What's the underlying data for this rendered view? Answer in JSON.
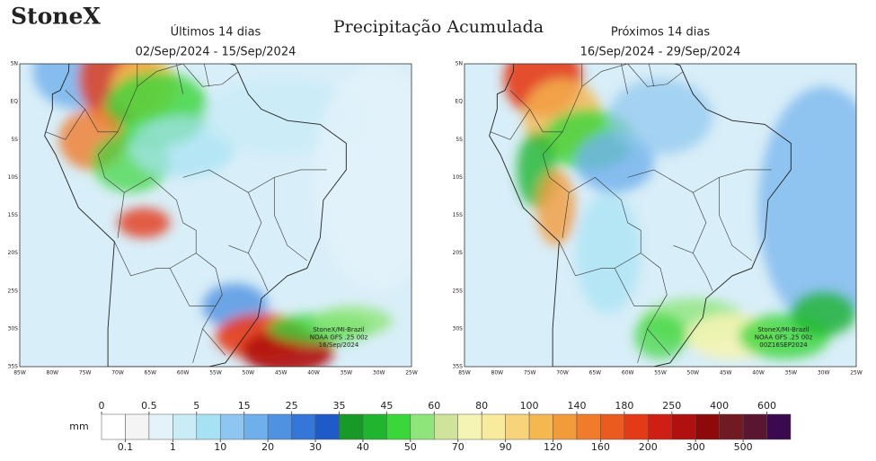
{
  "header": {
    "logo": "StoneX",
    "title": "Precipitação Acumulada"
  },
  "panels": [
    {
      "title": "Últimos 14 dias",
      "period": "02/Sep/2024 - 15/Sep/2024",
      "credits": [
        "StoneX/MI-Brazil",
        "NOAA GFS .25 00z",
        "16/Sep/2024"
      ]
    },
    {
      "title": "Próximos 14 dias",
      "period": "16/Sep/2024 - 29/Sep/2024",
      "credits": [
        "StoneX/MI-Brazil",
        "NOAA GFS .25 00z",
        "00Z16SEP2024"
      ]
    }
  ],
  "map_axes": {
    "lat_labels": [
      "5N",
      "EQ",
      "5S",
      "10S",
      "15S",
      "20S",
      "25S",
      "30S",
      "35S"
    ],
    "lon_labels": [
      "85W",
      "80W",
      "75W",
      "70W",
      "65W",
      "60W",
      "55W",
      "50W",
      "45W",
      "40W",
      "35W",
      "30W",
      "25W"
    ]
  },
  "legend": {
    "unit": "mm",
    "ticks": [
      0,
      0.1,
      0.5,
      1,
      5,
      10,
      15,
      20,
      25,
      30,
      35,
      40,
      45,
      50,
      60,
      70,
      80,
      90,
      100,
      120,
      140,
      160,
      180,
      200,
      250,
      300,
      400,
      500,
      600
    ],
    "colors": [
      "#ffffff",
      "#f4f4f4",
      "#e4f3fa",
      "#c9ecf7",
      "#a7e2f4",
      "#8dc6f0",
      "#6fb0ec",
      "#4f92e2",
      "#3577d8",
      "#1f5bc8",
      "#189a28",
      "#20b52f",
      "#3ad63a",
      "#8ee67a",
      "#cfe39a",
      "#f4f4b4",
      "#f8ec9c",
      "#f7d479",
      "#f5b850",
      "#f29b3b",
      "#f07b2b",
      "#eb5a1f",
      "#e53a17",
      "#cf1f14",
      "#b0100f",
      "#8e0a0a",
      "#701a22",
      "#5a1530",
      "#3b0a4e"
    ]
  }
}
